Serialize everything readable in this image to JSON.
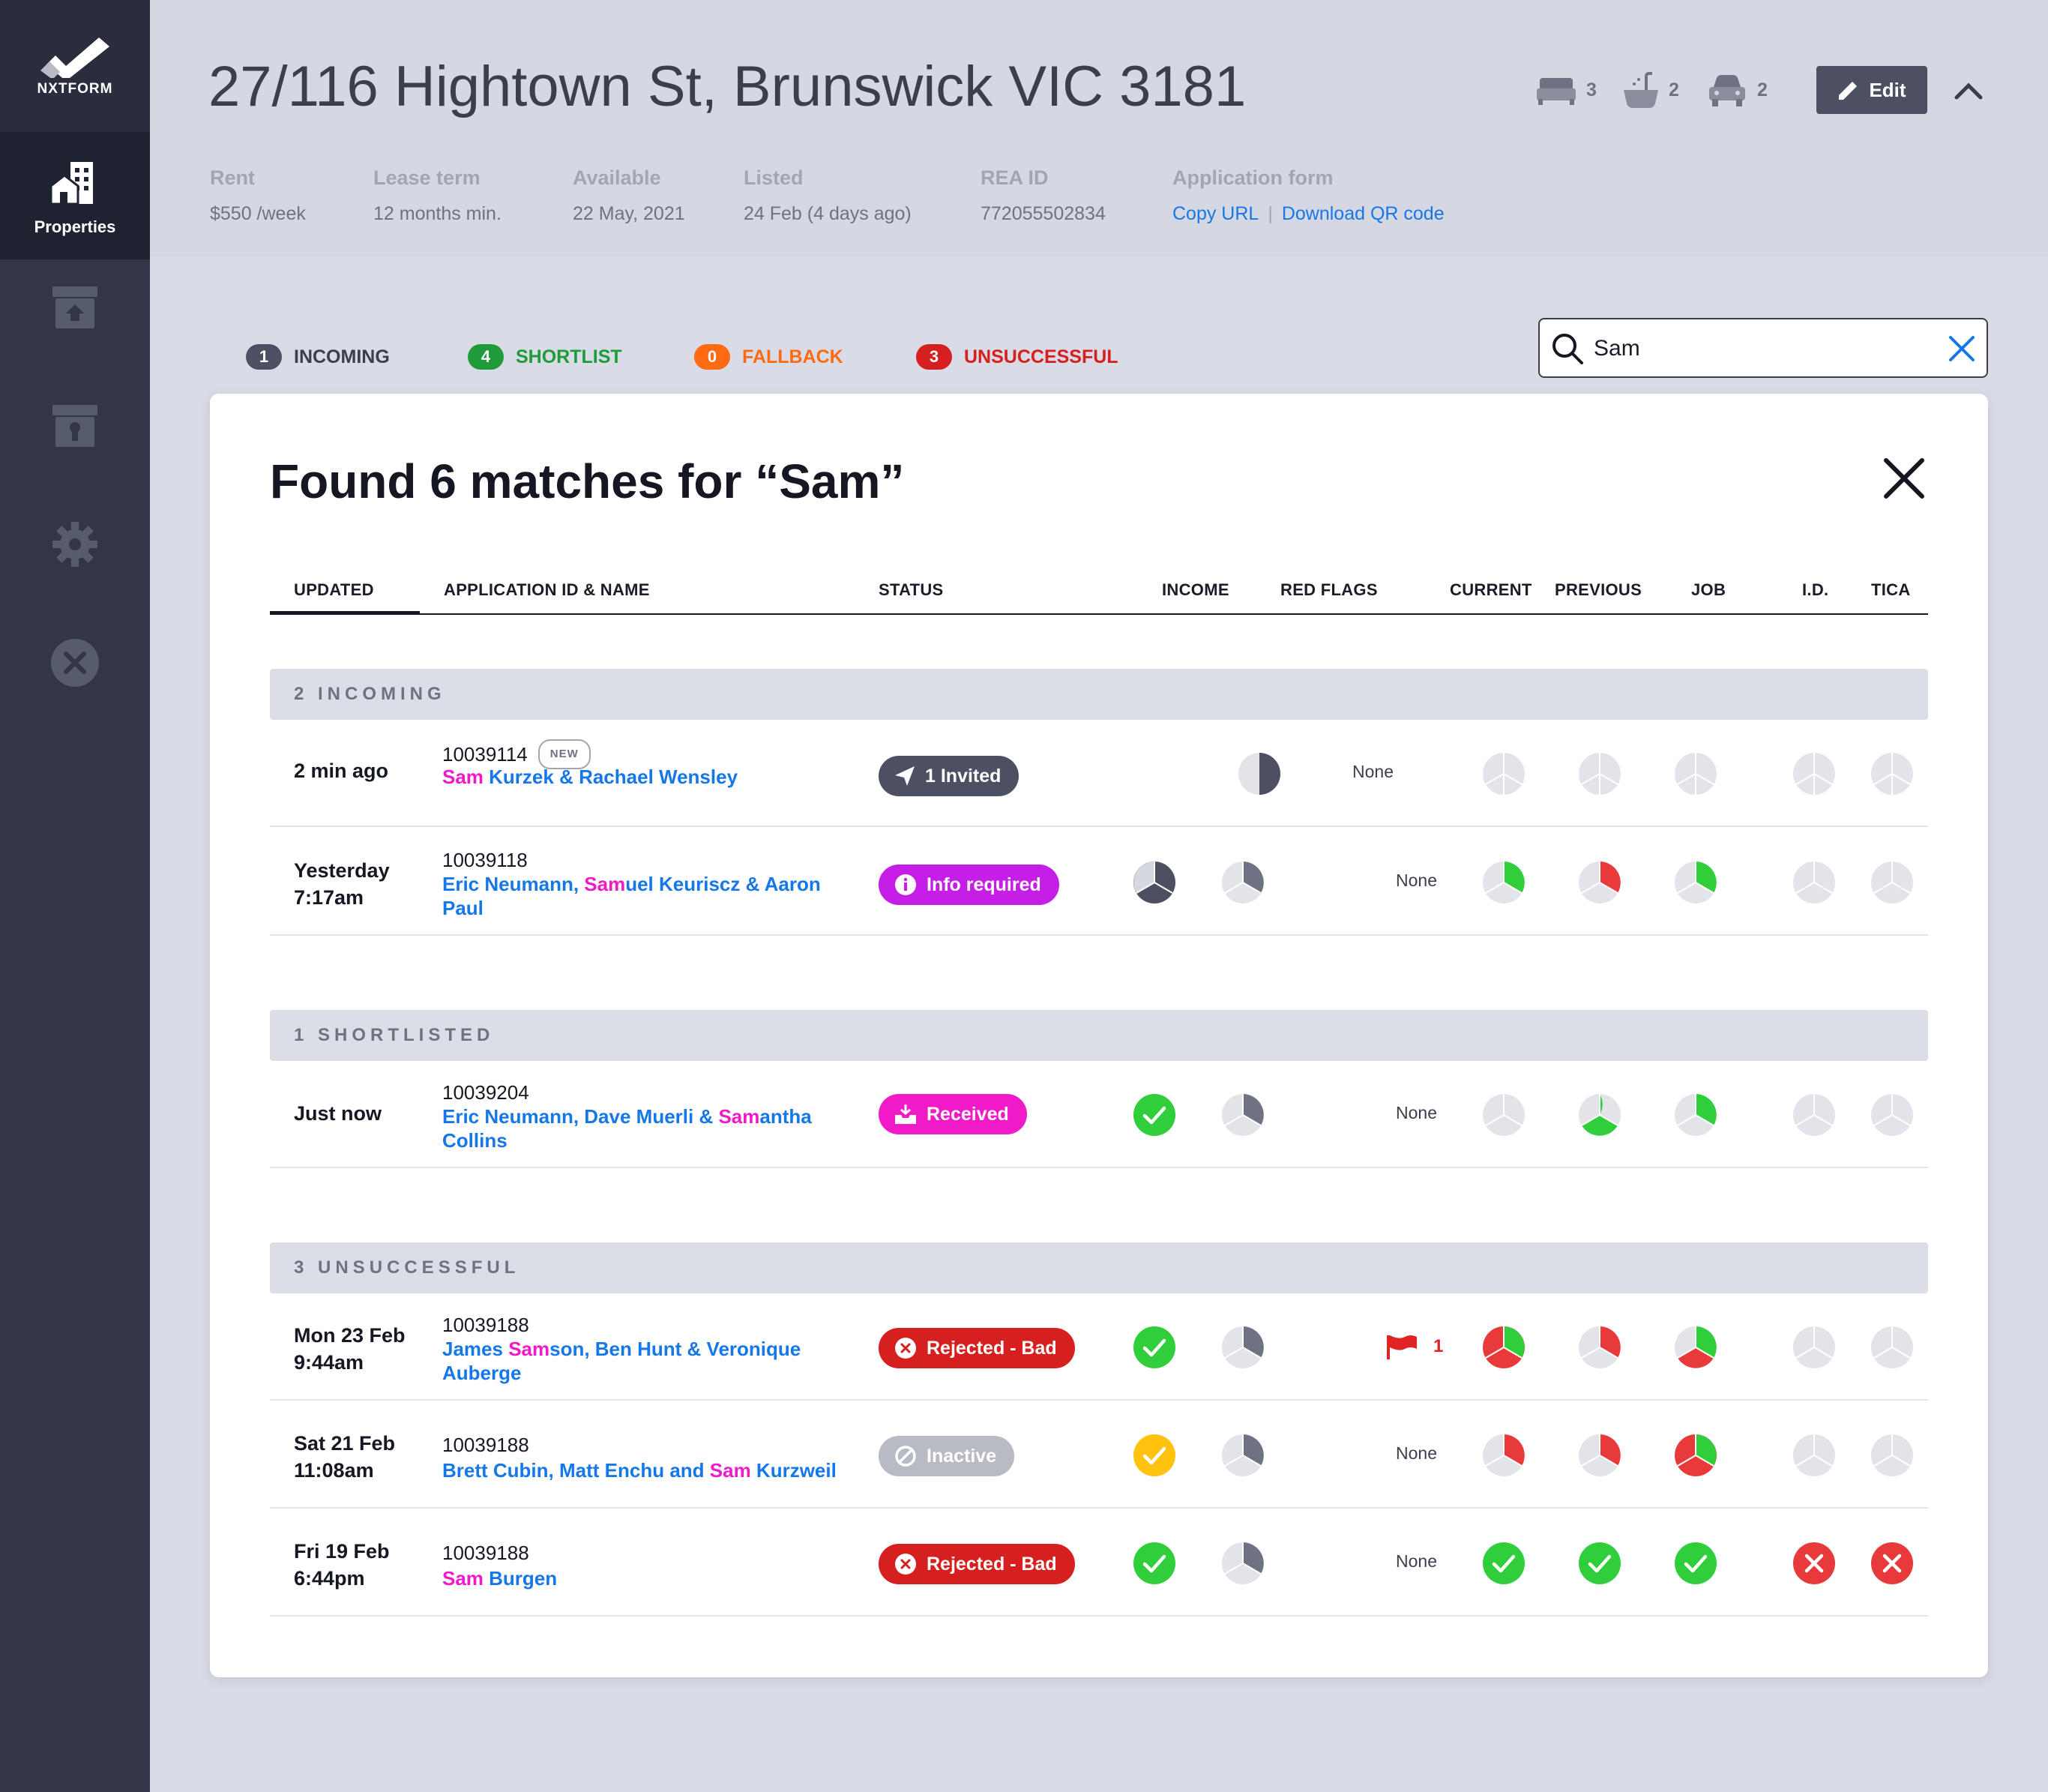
{
  "app": {
    "logo_text": "NXTFORM",
    "nav_active_label": "Properties"
  },
  "property": {
    "address": "27/116 Hightown St, Brunswick VIC 3181",
    "bedrooms": "3",
    "bathrooms": "2",
    "car_spaces": "2",
    "edit_label": "Edit",
    "meta": [
      {
        "label": "Rent",
        "value": "$550 /week"
      },
      {
        "label": "Lease term",
        "value": "12 months min."
      },
      {
        "label": "Available",
        "value": "22 May, 2021"
      },
      {
        "label": "Listed",
        "value": "24 Feb (4 days ago)"
      },
      {
        "label": "REA ID",
        "value": "772055502834"
      },
      {
        "label": "Application form",
        "link1": "Copy URL",
        "separator": "|",
        "link2": "Download QR code"
      }
    ]
  },
  "tabs": [
    {
      "count": "1",
      "label": "INCOMING",
      "color": "#4c5062"
    },
    {
      "count": "4",
      "label": "SHORTLIST",
      "color": "#1f9b3a"
    },
    {
      "count": "0",
      "label": "FALLBACK",
      "color": "#ff6a13"
    },
    {
      "count": "3",
      "label": "UNSUCCESSFUL",
      "color": "#d61f1f"
    }
  ],
  "search": {
    "value": "Sam"
  },
  "results": {
    "title": "Found 6 matches for “Sam”",
    "columns": [
      "UPDATED",
      "APPLICATION ID & NAME",
      "STATUS",
      "INCOME",
      "RED FLAGS",
      "CURRENT",
      "PREVIOUS",
      "JOB",
      "I.D.",
      "TICA"
    ],
    "sections": [
      {
        "label": "2 INCOMING"
      },
      {
        "label": "1 SHORTLISTED"
      },
      {
        "label": "3 UNSUCCESSFUL"
      }
    ],
    "rows": [
      {
        "date1": "2 min ago",
        "date2": "",
        "id": "10039114",
        "new_badge": "NEW",
        "names_pre": "",
        "names_hl": "Sam",
        "names_post": " Kurzek & Rachael Wensley",
        "status": "1 Invited",
        "status_color": "#4c5062",
        "red_flags": "None"
      },
      {
        "date1": "Yesterday",
        "date2": "7:17am",
        "id": "10039118",
        "names_pre": "Eric Neumann, ",
        "names_hl": "Sam",
        "names_post": "uel Keuriscz & Aaron Paul",
        "status": "Info required",
        "status_color": "#c51ee6",
        "red_flags": "None"
      },
      {
        "date1": "Just now",
        "date2": "",
        "id": "10039204",
        "names_pre": "Eric Neumann, Dave Muerli & ",
        "names_hl": "Sam",
        "names_post": "antha Collins",
        "status": "Received",
        "status_color": "#f01ac8",
        "red_flags": "None"
      },
      {
        "date1": "Mon 23 Feb",
        "date2": "9:44am",
        "id": "10039188",
        "names_pre": "James ",
        "names_hl": "Sam",
        "names_post": "son, Ben Hunt & Veronique Auberge",
        "status": "Rejected - Bad",
        "status_color": "#d61f1f",
        "red_flags": "1"
      },
      {
        "date1": "Sat 21 Feb",
        "date2": "11:08am",
        "id": "10039188",
        "names_pre": "Brett Cubin, Matt Enchu and ",
        "names_hl": "Sam",
        "names_post": " Kurzweil",
        "status": "Inactive",
        "status_color": "#b8bac4",
        "red_flags": "None"
      },
      {
        "date1": "Fri 19 Feb",
        "date2": "6:44pm",
        "id": "10039188",
        "names_pre": "",
        "names_hl": "Sam",
        "names_post": " Burgen",
        "status": "Rejected - Bad",
        "status_color": "#d61f1f",
        "red_flags": "None"
      }
    ]
  },
  "colors": {
    "accent_blue": "#1677e8",
    "highlight_pink": "#f01ac8",
    "ok_green": "#2fce3a",
    "bad_red": "#e83a3a",
    "warn_yellow": "#ffc20e"
  }
}
